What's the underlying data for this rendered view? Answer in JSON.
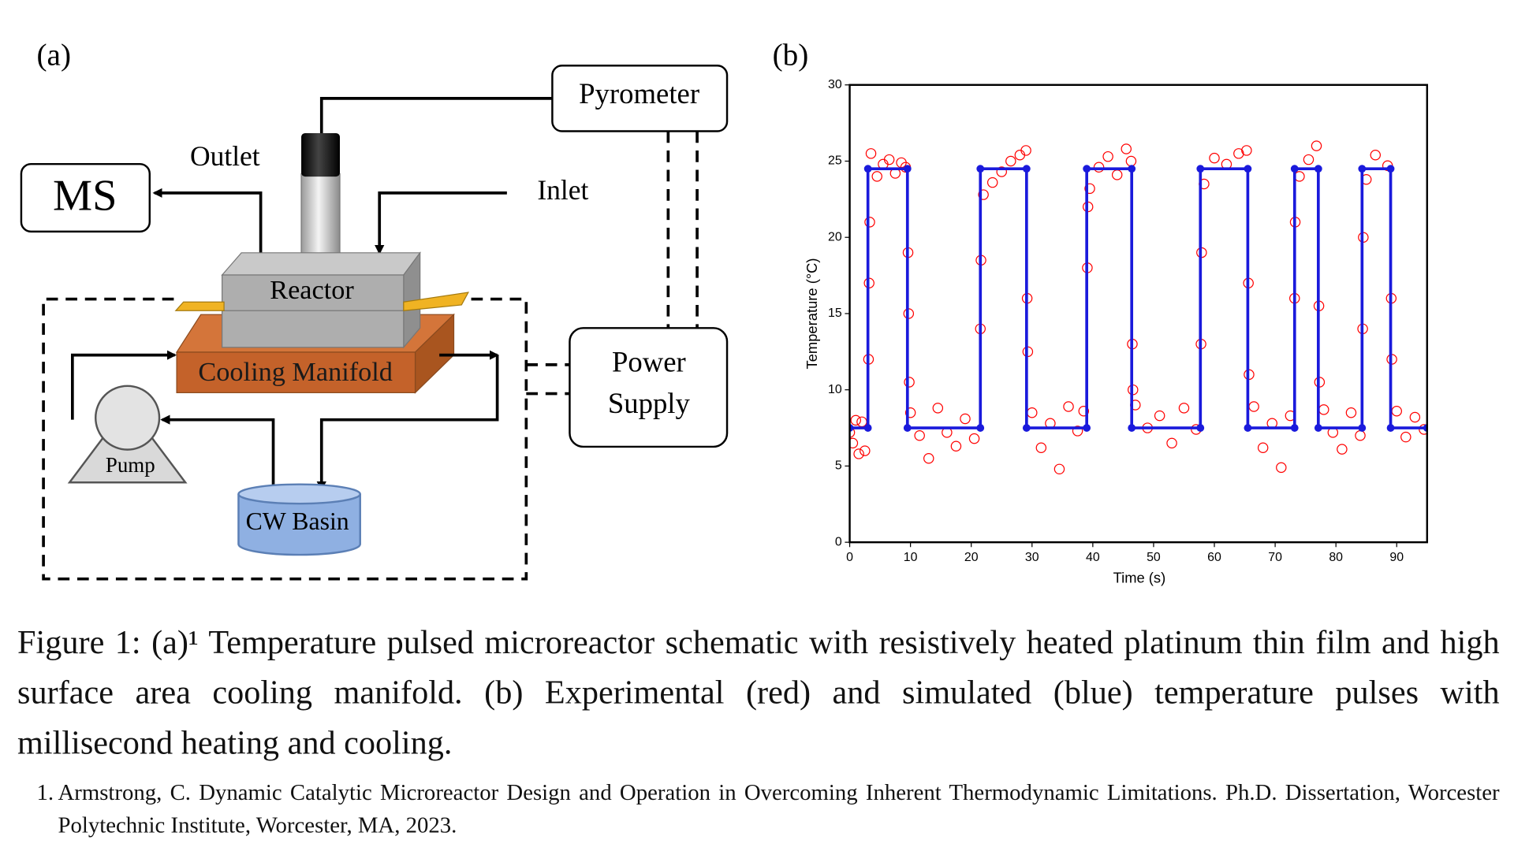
{
  "panel_a": {
    "label": "(a)",
    "ms": "MS",
    "outlet": "Outlet",
    "inlet": "Inlet",
    "pyrometer": "Pyrometer",
    "reactor": "Reactor",
    "cooling_manifold": "Cooling Manifold",
    "power_supply": [
      "Power",
      "Supply"
    ],
    "pump": "Pump",
    "cw_basin": "CW Basin"
  },
  "panel_b": {
    "label": "(b)"
  },
  "chart_data": {
    "type": "scatter",
    "x_label": "Time (s)",
    "y_label": "Temperature (°C)",
    "xlim": [
      0,
      95
    ],
    "ylim": [
      0,
      30
    ],
    "xticks": [
      0,
      10,
      20,
      30,
      40,
      50,
      60,
      70,
      80,
      90
    ],
    "yticks": [
      0,
      5,
      10,
      15,
      20,
      25,
      30
    ],
    "series": [
      {
        "color": "#ff0000",
        "style": "open-markers",
        "x": [
          0,
          0.5,
          1,
          1.5,
          2,
          2.5,
          3.1,
          3.2,
          3.3,
          3.5,
          4.5,
          5.5,
          6.5,
          7.5,
          8.5,
          9.2,
          9.6,
          9.7,
          9.8,
          10,
          11.5,
          13,
          14.5,
          16,
          17.5,
          19,
          20.5,
          21.5,
          21.6,
          22,
          23.5,
          25,
          26.5,
          28,
          29,
          29.2,
          29.3,
          30,
          31.5,
          33,
          34.5,
          36,
          37.5,
          38.5,
          39.1,
          39.2,
          39.5,
          41,
          42.5,
          44,
          45.5,
          46.3,
          46.5,
          46.6,
          47,
          49,
          51,
          53,
          55,
          57,
          57.8,
          57.9,
          58.3,
          60,
          62,
          64,
          65.3,
          65.6,
          65.7,
          66.5,
          68,
          69.5,
          71,
          72.5,
          73.2,
          73.3,
          74,
          75.5,
          76.8,
          77.2,
          77.3,
          78,
          79.5,
          81,
          82.5,
          84,
          84.4,
          84.5,
          85,
          86.5,
          88.5,
          89.1,
          89.2,
          90,
          91.5,
          93,
          94.5
        ],
        "values": [
          7.2,
          6.5,
          8.0,
          5.8,
          7.9,
          6.0,
          12,
          17,
          21,
          25.5,
          24.0,
          24.8,
          25.1,
          24.2,
          24.9,
          24.6,
          19,
          15,
          10.5,
          8.5,
          7.0,
          5.5,
          8.8,
          7.2,
          6.3,
          8.1,
          6.8,
          14,
          18.5,
          22.8,
          23.6,
          24.3,
          25.0,
          25.4,
          25.7,
          16,
          12.5,
          8.5,
          6.2,
          7.8,
          4.8,
          8.9,
          7.3,
          8.6,
          18,
          22,
          23.2,
          24.6,
          25.3,
          24.1,
          25.8,
          25.0,
          13,
          10,
          9.0,
          7.5,
          8.3,
          6.5,
          8.8,
          7.4,
          13,
          19,
          23.5,
          25.2,
          24.8,
          25.5,
          25.7,
          17,
          11,
          8.9,
          6.2,
          7.8,
          4.9,
          8.3,
          16,
          21,
          24.0,
          25.1,
          26.0,
          15.5,
          10.5,
          8.7,
          7.2,
          6.1,
          8.5,
          7.0,
          14,
          20,
          23.8,
          25.4,
          24.7,
          16,
          12,
          8.6,
          6.9,
          8.2,
          7.4
        ]
      },
      {
        "color": "#1a1adc",
        "style": "line-markers",
        "x": [
          0,
          3,
          3,
          9.5,
          9.5,
          21.5,
          21.5,
          29.1,
          29.1,
          39,
          39,
          46.4,
          46.4,
          57.7,
          57.7,
          65.5,
          65.5,
          73.2,
          73.2,
          77.1,
          77.1,
          84.3,
          84.3,
          89,
          89,
          95
        ],
        "values": [
          7.5,
          7.5,
          24.5,
          24.5,
          7.5,
          7.5,
          24.5,
          24.5,
          7.5,
          7.5,
          24.5,
          24.5,
          7.5,
          7.5,
          24.5,
          24.5,
          7.5,
          7.5,
          24.5,
          24.5,
          7.5,
          7.5,
          24.5,
          24.5,
          7.5,
          7.5
        ]
      }
    ]
  },
  "caption": {
    "text": "Figure 1: (a)¹ Temperature pulsed microreactor schematic with resistively heated platinum thin film and high surface area cooling manifold. (b) Experimental (red) and simulated (blue) temperature pulses with millisecond heating and cooling."
  },
  "footnote": {
    "number": "1.",
    "text": "Armstrong, C. Dynamic Catalytic Microreactor Design and Operation in Overcoming Inherent Thermodynamic Limitations. Ph.D. Dissertation, Worcester Polytechnic Institute, Worcester, MA, 2023."
  }
}
